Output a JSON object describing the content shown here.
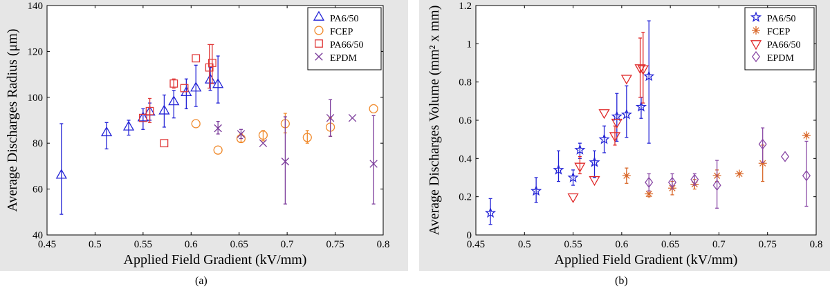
{
  "chart_data": [
    {
      "type": "scatter",
      "panel_label": "(a)",
      "xlabel": "Applied Field Gradient (kV/mm)",
      "ylabel": "Average Discharges Radius (μm)",
      "xlim": [
        0.45,
        0.8
      ],
      "ylim": [
        40,
        140
      ],
      "xticks": [
        "0.45",
        "0.5",
        "0.55",
        "0.6",
        "0.65",
        "0.7",
        "0.75",
        "0.8"
      ],
      "yticks": [
        "40",
        "60",
        "80",
        "100",
        "120",
        "140"
      ],
      "legend_position": "top-right",
      "series": [
        {
          "name": "PA6/50",
          "marker": "triangle",
          "color": "#2323d6",
          "points": [
            [
              0.465,
              66,
              49,
              88.5
            ],
            [
              0.512,
              84.5,
              77.5,
              89
            ],
            [
              0.535,
              87,
              83.5,
              90
            ],
            [
              0.55,
              91,
              86,
              95
            ],
            [
              0.557,
              93.5,
              90,
              97.5
            ],
            [
              0.572,
              94,
              87,
              101
            ],
            [
              0.582,
              98,
              91,
              103
            ],
            [
              0.595,
              102,
              95,
              108
            ],
            [
              0.605,
              104,
              96,
              114
            ],
            [
              0.62,
              107.5,
              103,
              113
            ],
            [
              0.628,
              105.5,
              97.5,
              118
            ]
          ]
        },
        {
          "name": "FCEP",
          "marker": "circle",
          "color": "#f08a2c",
          "points": [
            [
              0.605,
              88.5,
              null,
              null
            ],
            [
              0.628,
              77,
              null,
              null
            ],
            [
              0.652,
              82,
              80.5,
              84
            ],
            [
              0.675,
              83.5,
              81,
              85.5
            ],
            [
              0.698,
              88.5,
              84.5,
              93
            ],
            [
              0.721,
              82.5,
              80,
              85.5
            ],
            [
              0.745,
              87,
              83,
              91
            ],
            [
              0.79,
              95,
              null,
              null
            ]
          ]
        },
        {
          "name": "PA66/50",
          "marker": "square",
          "color": "#e03a3a",
          "points": [
            [
              0.55,
              91,
              null,
              null
            ],
            [
              0.557,
              94,
              89,
              99.5
            ],
            [
              0.572,
              80,
              null,
              null
            ],
            [
              0.582,
              106,
              104,
              108
            ],
            [
              0.593,
              104,
              null,
              null
            ],
            [
              0.605,
              117,
              null,
              null
            ],
            [
              0.619,
              113,
              104,
              123
            ],
            [
              0.622,
              115,
              106,
              123
            ]
          ]
        },
        {
          "name": "EPDM",
          "marker": "x",
          "color": "#7a3a9a",
          "points": [
            [
              0.628,
              86.5,
              84,
              89.5
            ],
            [
              0.652,
              84,
              82,
              86
            ],
            [
              0.675,
              80,
              null,
              null
            ],
            [
              0.698,
              72,
              53.5,
              91.5
            ],
            [
              0.745,
              91,
              83,
              99
            ],
            [
              0.768,
              91,
              null,
              null
            ],
            [
              0.79,
              71,
              53.5,
              92
            ]
          ]
        }
      ]
    },
    {
      "type": "scatter",
      "panel_label": "(b)",
      "xlabel": "Applied Field Gradient (kV/mm)",
      "ylabel": "Average Discharges Volume (mm² x mm)",
      "xlim": [
        0.45,
        0.8
      ],
      "ylim": [
        0,
        1.2
      ],
      "xticks": [
        "0.45",
        "0.5",
        "0.55",
        "0.6",
        "0.65",
        "0.7",
        "0.75",
        "0.8"
      ],
      "yticks": [
        "0",
        "0.2",
        "0.4",
        "0.6",
        "0.8",
        "1",
        "1.2"
      ],
      "legend_position": "top-right",
      "series": [
        {
          "name": "PA6/50",
          "marker": "star",
          "color": "#2323d6",
          "points": [
            [
              0.465,
              0.115,
              0.055,
              0.19
            ],
            [
              0.512,
              0.23,
              0.17,
              0.3
            ],
            [
              0.535,
              0.34,
              0.28,
              0.44
            ],
            [
              0.55,
              0.3,
              0.26,
              0.34
            ],
            [
              0.557,
              0.445,
              0.4,
              0.48
            ],
            [
              0.572,
              0.38,
              0.3,
              0.44
            ],
            [
              0.582,
              0.5,
              0.43,
              0.57
            ],
            [
              0.595,
              0.62,
              0.49,
              0.74
            ],
            [
              0.605,
              0.63,
              0.51,
              0.78
            ],
            [
              0.62,
              0.67,
              0.61,
              0.72
            ],
            [
              0.628,
              0.83,
              0.48,
              1.12
            ]
          ]
        },
        {
          "name": "FCEP",
          "marker": "asterisk",
          "color": "#d9682a",
          "points": [
            [
              0.605,
              0.31,
              0.27,
              0.35
            ],
            [
              0.628,
              0.215,
              0.2,
              0.23
            ],
            [
              0.652,
              0.245,
              0.21,
              0.28
            ],
            [
              0.675,
              0.265,
              0.24,
              0.29
            ],
            [
              0.698,
              0.31,
              0.28,
              0.34
            ],
            [
              0.721,
              0.32,
              null,
              null
            ],
            [
              0.745,
              0.375,
              0.28,
              0.47
            ],
            [
              0.79,
              0.52,
              null,
              null
            ]
          ]
        },
        {
          "name": "PA66/50",
          "marker": "triangle-down",
          "color": "#e02a2a",
          "points": [
            [
              0.55,
              0.2,
              null,
              null
            ],
            [
              0.557,
              0.36,
              0.32,
              0.41
            ],
            [
              0.572,
              0.29,
              null,
              null
            ],
            [
              0.582,
              0.64,
              null,
              null
            ],
            [
              0.593,
              0.52,
              0.47,
              0.57
            ],
            [
              0.595,
              0.59,
              null,
              null
            ],
            [
              0.605,
              0.82,
              null,
              null
            ],
            [
              0.619,
              0.875,
              0.72,
              1.03
            ],
            [
              0.622,
              0.87,
              0.69,
              1.06
            ]
          ]
        },
        {
          "name": "EPDM",
          "marker": "diamond",
          "color": "#8a4aa6",
          "points": [
            [
              0.628,
              0.275,
              0.23,
              0.32
            ],
            [
              0.652,
              0.275,
              0.24,
              0.32
            ],
            [
              0.675,
              0.29,
              0.26,
              0.32
            ],
            [
              0.698,
              0.26,
              0.14,
              0.39
            ],
            [
              0.745,
              0.475,
              0.38,
              0.56
            ],
            [
              0.768,
              0.41,
              null,
              null
            ],
            [
              0.79,
              0.31,
              0.15,
              0.49
            ]
          ]
        }
      ]
    }
  ]
}
